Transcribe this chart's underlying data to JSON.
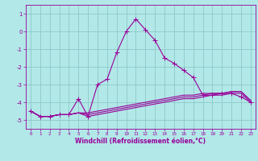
{
  "xlabel": "Windchill (Refroidissement éolien,°C)",
  "xlim": [
    -0.5,
    23.5
  ],
  "ylim": [
    -5.5,
    1.5
  ],
  "yticks": [
    1,
    0,
    -1,
    -2,
    -3,
    -4,
    -5
  ],
  "xticks": [
    0,
    1,
    2,
    3,
    4,
    5,
    6,
    7,
    8,
    9,
    10,
    11,
    12,
    13,
    14,
    15,
    16,
    17,
    18,
    19,
    20,
    21,
    22,
    23
  ],
  "bg_color": "#b2e8e8",
  "line_color": "#990099",
  "grid_color": "#8ec8c8",
  "line1_x": [
    0,
    1,
    2,
    3,
    4,
    5,
    6,
    7,
    8,
    9,
    10,
    11,
    12,
    13,
    14,
    15,
    16,
    17,
    18,
    19,
    20,
    21,
    22,
    23
  ],
  "line1_y": [
    -4.5,
    -4.8,
    -4.8,
    -4.7,
    -4.7,
    -3.8,
    -4.8,
    -3.0,
    -2.7,
    -1.2,
    0.0,
    0.7,
    0.1,
    -0.5,
    -1.5,
    -1.8,
    -2.2,
    -2.6,
    -3.6,
    -3.6,
    -3.5,
    -3.5,
    -3.7,
    -4.0
  ],
  "line2_x": [
    0,
    1,
    2,
    3,
    4,
    5,
    6,
    7,
    8,
    9,
    10,
    11,
    12,
    13,
    14,
    15,
    16,
    17,
    18,
    19,
    20,
    21,
    22,
    23
  ],
  "line2_y": [
    -4.5,
    -4.8,
    -4.8,
    -4.7,
    -4.7,
    -4.6,
    -4.6,
    -4.5,
    -4.4,
    -4.3,
    -4.2,
    -4.1,
    -4.0,
    -3.9,
    -3.8,
    -3.7,
    -3.6,
    -3.6,
    -3.5,
    -3.5,
    -3.5,
    -3.4,
    -3.4,
    -3.9
  ],
  "line3_x": [
    0,
    1,
    2,
    3,
    4,
    5,
    6,
    7,
    8,
    9,
    10,
    11,
    12,
    13,
    14,
    15,
    16,
    17,
    18,
    19,
    20,
    21,
    22,
    23
  ],
  "line3_y": [
    -4.5,
    -4.8,
    -4.8,
    -4.7,
    -4.7,
    -4.6,
    -4.7,
    -4.6,
    -4.5,
    -4.4,
    -4.3,
    -4.2,
    -4.1,
    -4.0,
    -3.9,
    -3.8,
    -3.7,
    -3.7,
    -3.6,
    -3.5,
    -3.5,
    -3.4,
    -3.4,
    -3.9
  ],
  "line4_x": [
    0,
    1,
    2,
    3,
    4,
    5,
    6,
    7,
    8,
    9,
    10,
    11,
    12,
    13,
    14,
    15,
    16,
    17,
    18,
    19,
    20,
    21,
    22,
    23
  ],
  "line4_y": [
    -4.5,
    -4.8,
    -4.8,
    -4.7,
    -4.7,
    -4.6,
    -4.8,
    -4.7,
    -4.6,
    -4.5,
    -4.4,
    -4.3,
    -4.2,
    -4.1,
    -4.0,
    -3.9,
    -3.8,
    -3.8,
    -3.7,
    -3.6,
    -3.6,
    -3.5,
    -3.5,
    -4.0
  ],
  "tick_fontsize": 5,
  "xlabel_fontsize": 5.5,
  "lw": 0.8,
  "marker_size": 3
}
